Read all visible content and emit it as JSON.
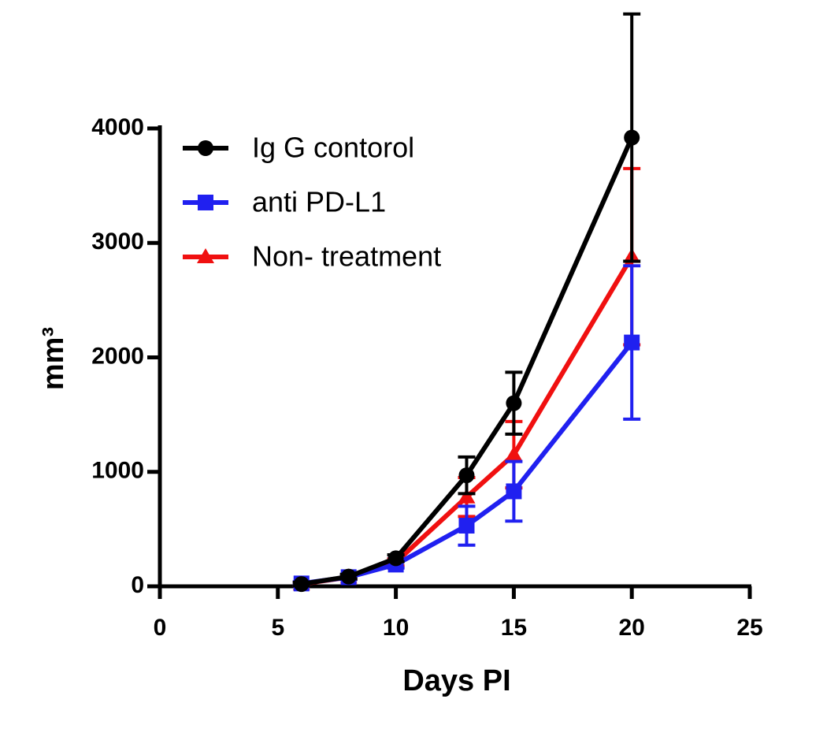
{
  "chart_data": {
    "type": "line",
    "x_label": "Days PI",
    "y_label": "mm³",
    "x": [
      6,
      8,
      10,
      13,
      15,
      20
    ],
    "series": [
      {
        "name": "Ig G contorol",
        "color": "#000000",
        "marker": "circle",
        "values": [
          20,
          85,
          245,
          970,
          1600,
          3920
        ],
        "errors": [
          15,
          20,
          30,
          160,
          270,
          1080
        ]
      },
      {
        "name": "anti PD-L1",
        "color": "#2020f0",
        "marker": "square",
        "values": [
          25,
          80,
          190,
          530,
          830,
          2130
        ],
        "errors": [
          15,
          20,
          30,
          170,
          260,
          670
        ]
      },
      {
        "name": "Non- treatment",
        "color": "#f01010",
        "marker": "triangle",
        "values": [
          20,
          80,
          210,
          780,
          1150,
          2880
        ],
        "errors": [
          15,
          20,
          30,
          170,
          290,
          770
        ]
      }
    ],
    "xlim": [
      0,
      25
    ],
    "xticks": [
      0,
      5,
      10,
      15,
      20,
      25
    ],
    "ylim": [
      0,
      4000
    ],
    "yticks": [
      0,
      1000,
      2000,
      3000,
      4000
    ],
    "grid": false,
    "legend": "upper left"
  }
}
